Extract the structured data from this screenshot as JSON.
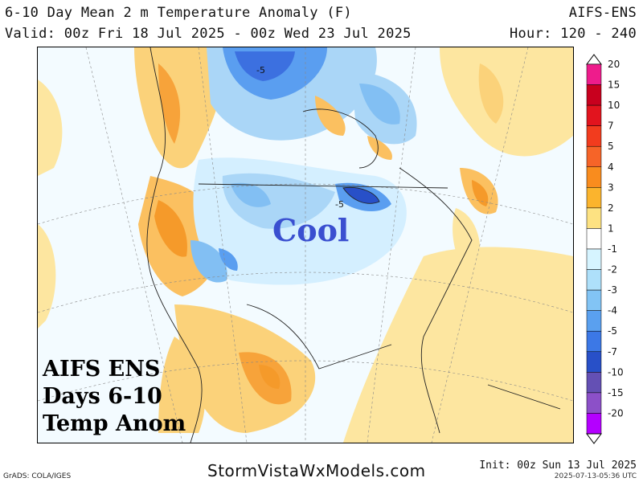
{
  "header": {
    "title": "6-10 Day Mean 2 m Temperature Anomaly (F)",
    "valid": "Valid: 00z Fri 18 Jul 2025 - 00z Wed 23 Jul 2025",
    "model": "AIFS-ENS",
    "hours": "Hour: 120 - 240"
  },
  "map": {
    "overlay_lines": [
      "AIFS ENS",
      "Days 6-10",
      "Temp Anom"
    ],
    "cool_label": "Cool",
    "contour_labels": [
      "-5",
      "-5"
    ],
    "accent_color": "#3a4fd0"
  },
  "colorbar": {
    "labels": [
      "20",
      "15",
      "10",
      "7",
      "5",
      "4",
      "3",
      "2",
      "1",
      "-1",
      "-2",
      "-3",
      "-4",
      "-5",
      "-7",
      "-10",
      "-15",
      "-20"
    ],
    "colors": [
      "#ee1c8c",
      "#c8001e",
      "#e2141e",
      "#f23c1e",
      "#f66428",
      "#f98c1e",
      "#fbb42d",
      "#fde282",
      "#ffffff",
      "#d6f4ff",
      "#aee0fa",
      "#82c4f5",
      "#5aa0ef",
      "#3c78e6",
      "#2850c8",
      "#6450b4",
      "#8c50c8",
      "#b400ff"
    ]
  },
  "footer": {
    "site": "StormVistaWxModels.com",
    "grads": "GrADS: COLA/IGES",
    "init": "Init: 00z Sun 13 Jul 2025",
    "timestamp": "2025-07-13-05:36 UTC"
  }
}
